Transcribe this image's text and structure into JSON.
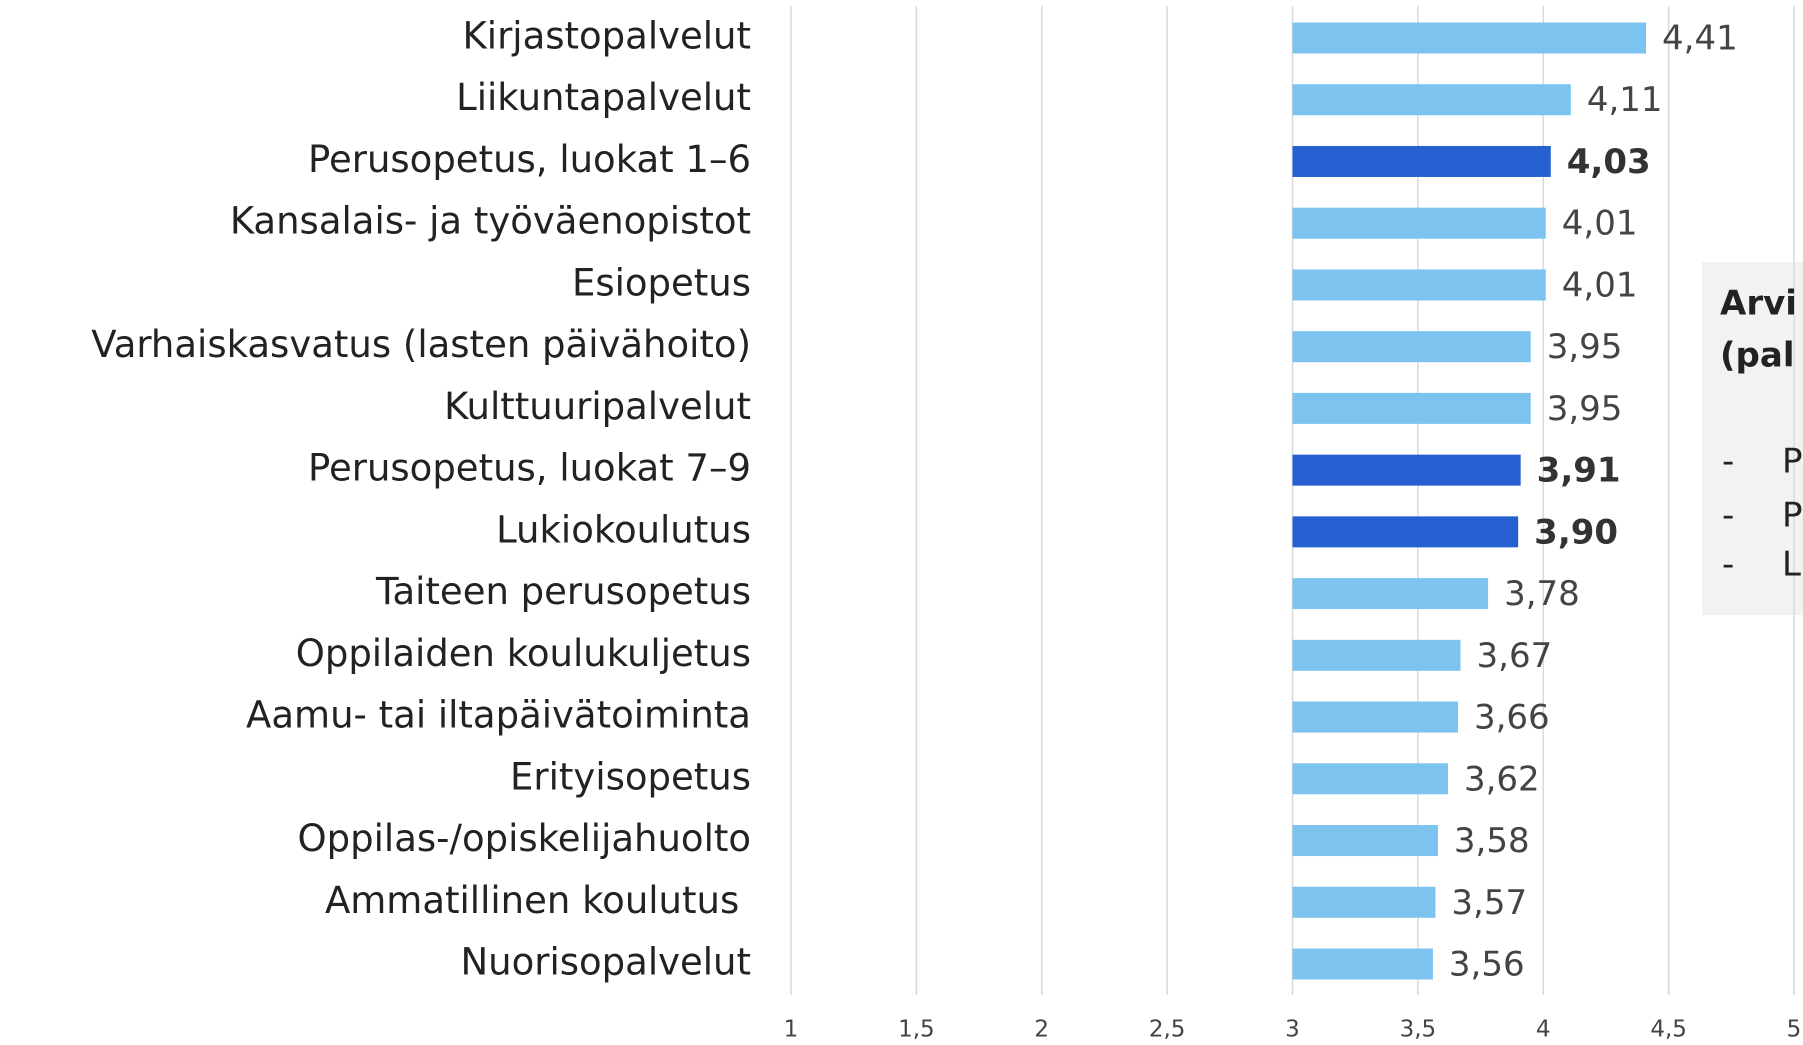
{
  "chart_data": {
    "type": "bar",
    "orientation": "horizontal",
    "categories": [
      "Kirjastopalvelut",
      "Liikuntapalvelut",
      "Perusopetus, luokat 1–6",
      "Kansalais- ja työväenopistot",
      "Esiopetus",
      "Varhaiskasvatus (lasten päivähoito)",
      "Kulttuuripalvelut",
      "Perusopetus, luokat 7–9",
      "Lukiokoulutus",
      "Taiteen perusopetus",
      "Oppilaiden koulukuljetus",
      "Aamu- tai iltapäivätoiminta",
      "Erityisopetus",
      "Oppilas-/opiskelijahuolto",
      "Ammatillinen koulutus ",
      "Nuorisopalvelut"
    ],
    "values": [
      4.41,
      4.11,
      4.03,
      4.01,
      4.01,
      3.95,
      3.95,
      3.91,
      3.9,
      3.78,
      3.67,
      3.66,
      3.62,
      3.58,
      3.57,
      3.56
    ],
    "value_labels": [
      "4,41",
      "4,11",
      "4,03",
      "4,01",
      "4,01",
      "3,95",
      "3,95",
      "3,91",
      "3,90",
      "3,78",
      "3,67",
      "3,66",
      "3,62",
      "3,58",
      "3,57",
      "3,56"
    ],
    "colors": [
      "#7dc3f0",
      "#7dc3f0",
      "#2660d0",
      "#7dc3f0",
      "#7dc3f0",
      "#7dc3f0",
      "#7dc3f0",
      "#2660d0",
      "#2660d0",
      "#7dc3f0",
      "#7dc3f0",
      "#7dc3f0",
      "#7dc3f0",
      "#7dc3f0",
      "#7dc3f0",
      "#7dc3f0"
    ],
    "highlight_color": "#2660d0",
    "x_origin": 3,
    "xlim": [
      1,
      5
    ],
    "xticks": [
      1,
      {
        "value": 1.5,
        "label": "1,5"
      },
      2,
      {
        "value": 2.5,
        "label": "2,5"
      },
      3,
      {
        "value": 3.5,
        "label": "3,5"
      },
      4,
      {
        "value": 4.5,
        "label": "4,5"
      },
      5
    ],
    "grid": true,
    "annotation": {
      "title_lines": [
        "Arvi",
        "(pal"
      ],
      "bullet": "-",
      "items": [
        "P",
        "P",
        "L"
      ]
    }
  }
}
